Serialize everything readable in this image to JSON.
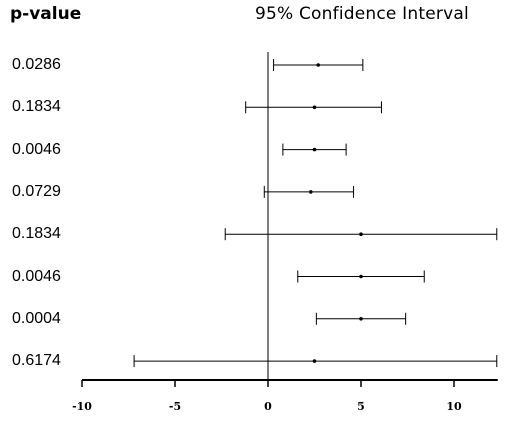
{
  "header": {
    "pvalue_label": "p-value",
    "title": "95% Confidence Interval"
  },
  "chart_data": {
    "type": "forest",
    "title": "95% Confidence Interval",
    "xlim": [
      -10,
      12.3
    ],
    "xticks": [
      -10,
      -5,
      0,
      5,
      10
    ],
    "tick_labels": [
      "-10",
      "-5",
      "0",
      "5",
      "10"
    ],
    "reference_line": 0,
    "rows": [
      {
        "p_value": "0.0286",
        "estimate": 2.7,
        "lower": 0.3,
        "upper": 5.1
      },
      {
        "p_value": "0.1834",
        "estimate": 2.5,
        "lower": -1.2,
        "upper": 6.1
      },
      {
        "p_value": "0.0046",
        "estimate": 2.5,
        "lower": 0.8,
        "upper": 4.2
      },
      {
        "p_value": "0.0729",
        "estimate": 2.3,
        "lower": -0.2,
        "upper": 4.6
      },
      {
        "p_value": "0.1834",
        "estimate": 5.0,
        "lower": -2.3,
        "upper": 12.3
      },
      {
        "p_value": "0.0046",
        "estimate": 5.0,
        "lower": 1.6,
        "upper": 8.4
      },
      {
        "p_value": "0.0004",
        "estimate": 5.0,
        "lower": 2.6,
        "upper": 7.4
      },
      {
        "p_value": "0.6174",
        "estimate": 2.5,
        "lower": -7.2,
        "upper": 12.3
      }
    ]
  }
}
